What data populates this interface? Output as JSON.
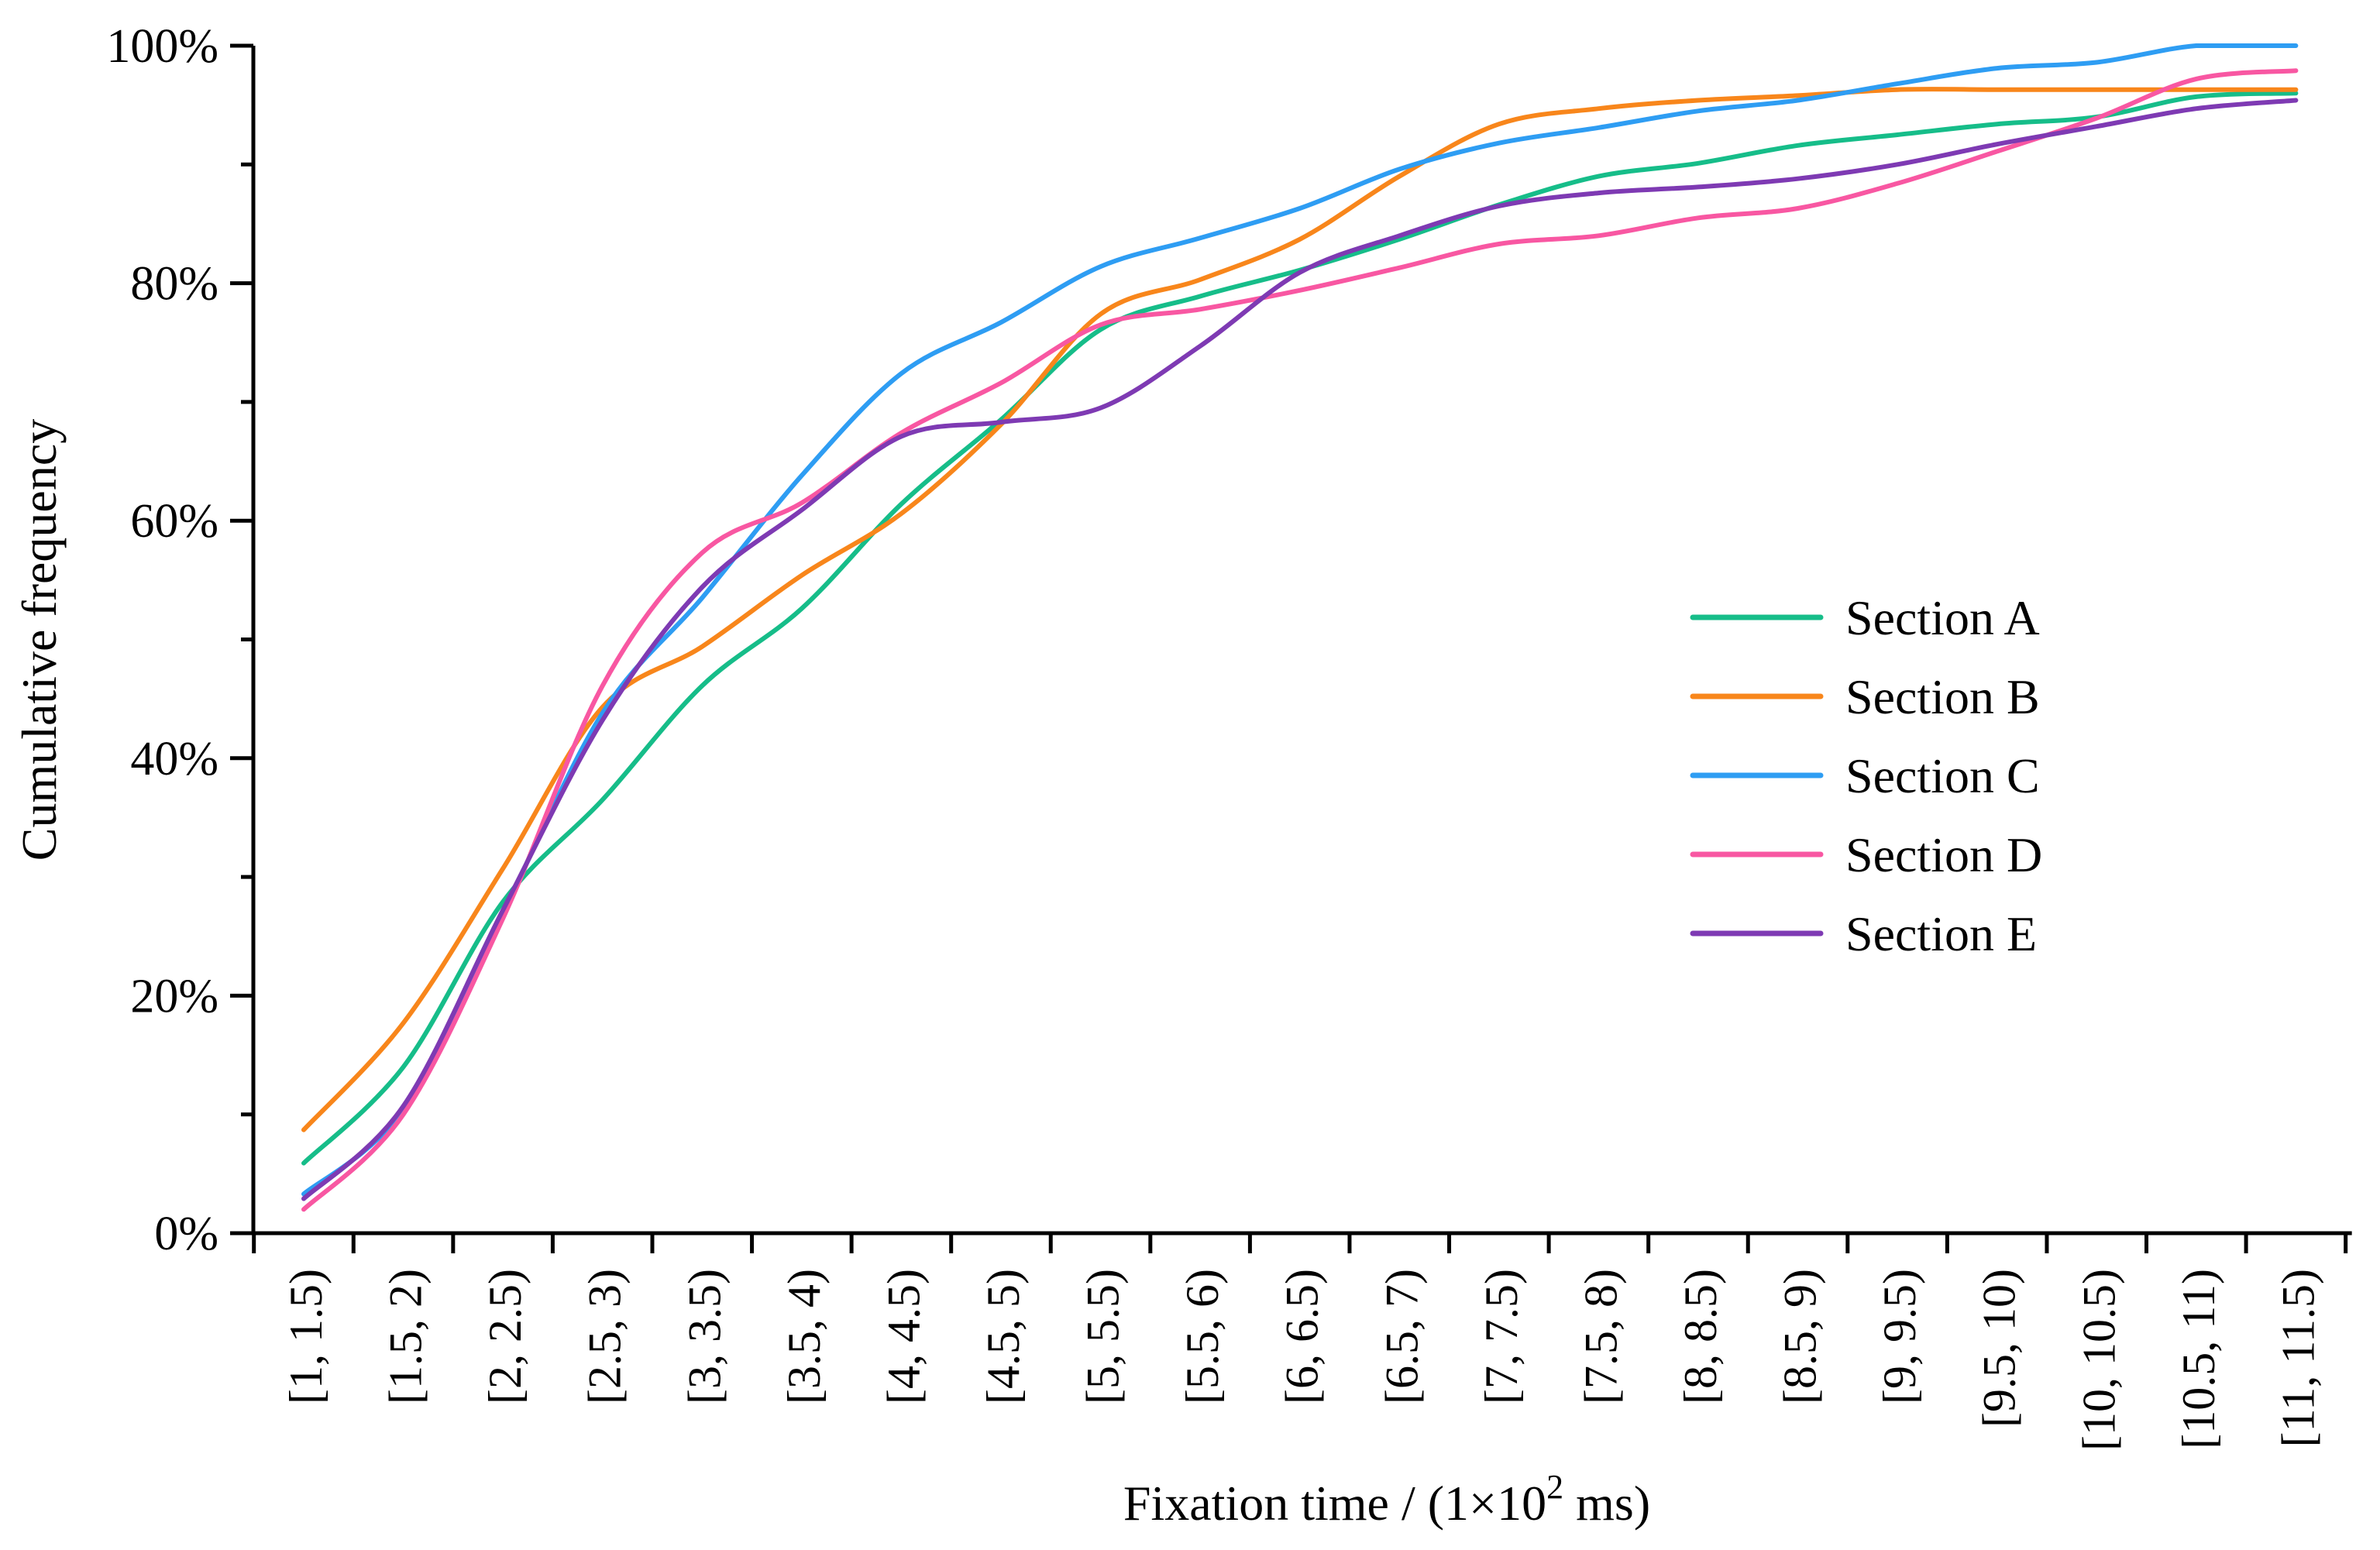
{
  "chart_data": {
    "type": "line",
    "title": "",
    "xlabel": "Fixation time / (1×10² ms)",
    "xlabel_parts": {
      "prefix": "Fixation time / (1×10",
      "superscript": "2",
      "suffix": " ms)"
    },
    "ylabel": "Cumulative frequency",
    "grid": false,
    "legend_position": "center-right",
    "ylim": [
      0,
      100
    ],
    "y_tick_labels": [
      "0%",
      "20%",
      "40%",
      "60%",
      "80%",
      "100%"
    ],
    "y_major_ticks": [
      0,
      20,
      40,
      60,
      80,
      100
    ],
    "y_minor_ticks": [
      10,
      30,
      50,
      70,
      90
    ],
    "categories": [
      "[1, 1.5)",
      "[1.5, 2)",
      "[2, 2.5)",
      "[2.5, 3)",
      "[3, 3.5)",
      "[3.5, 4)",
      "[4, 4.5)",
      "[4.5, 5)",
      "[5, 5.5)",
      "[5.5, 6)",
      "[6, 6.5)",
      "[6.5, 7)",
      "[7, 7.5)",
      "[7.5, 8)",
      "[8, 8.5)",
      "[8.5, 9)",
      "[9, 9.5)",
      "[9.5, 10)",
      "[10, 10.5)",
      "[10.5, 11)",
      "[11, 11.5)"
    ],
    "series": [
      {
        "name": "Section A",
        "color": "#16bd89",
        "values": [
          5.9,
          14.0,
          27.9,
          36.5,
          46.1,
          52.6,
          61.4,
          68.5,
          76.1,
          78.9,
          81.1,
          83.7,
          86.6,
          89.0,
          90.1,
          91.6,
          92.5,
          93.4,
          94.0,
          95.7,
          96.0
        ]
      },
      {
        "name": "Section B",
        "color": "#f8861b",
        "values": [
          8.7,
          17.7,
          30.7,
          44.3,
          49.4,
          55.4,
          60.6,
          68.1,
          77.4,
          80.3,
          83.7,
          89.0,
          93.4,
          94.7,
          95.4,
          95.8,
          96.3,
          96.3,
          96.3,
          96.3,
          96.3
        ]
      },
      {
        "name": "Section C",
        "color": "#2e9df3",
        "values": [
          3.3,
          10.4,
          27.0,
          43.8,
          53.5,
          63.8,
          72.4,
          76.7,
          81.4,
          83.8,
          86.3,
          89.6,
          91.8,
          93.1,
          94.5,
          95.4,
          96.8,
          98.1,
          98.6,
          100.0,
          100.0
        ]
      },
      {
        "name": "Section D",
        "color": "#f857a2",
        "values": [
          2.0,
          10.0,
          26.5,
          46.1,
          57.3,
          61.5,
          67.4,
          71.6,
          76.5,
          77.8,
          79.4,
          81.3,
          83.3,
          84.0,
          85.5,
          86.3,
          88.4,
          91.1,
          93.9,
          97.2,
          97.9
        ]
      },
      {
        "name": "Section E",
        "color": "#7e3ab3",
        "values": [
          2.9,
          10.7,
          27.2,
          43.2,
          54.4,
          60.9,
          67.1,
          68.3,
          69.5,
          74.7,
          80.9,
          84.0,
          86.5,
          87.6,
          88.1,
          88.8,
          90.0,
          91.7,
          93.2,
          94.7,
          95.4
        ]
      }
    ]
  }
}
